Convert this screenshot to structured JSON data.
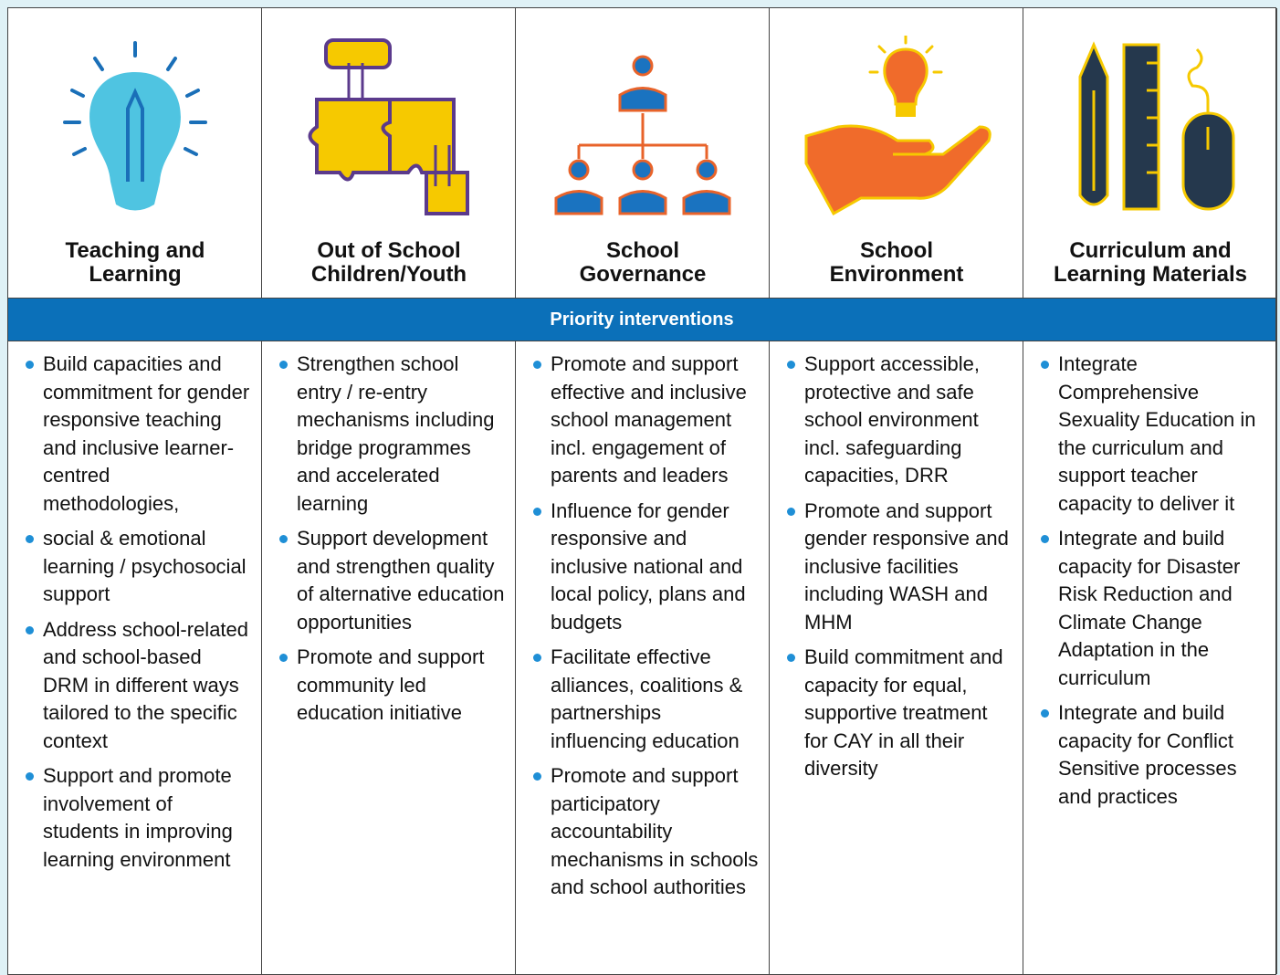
{
  "banner": "Priority interventions",
  "columns": [
    {
      "title": [
        "Teaching and",
        "Learning"
      ],
      "items": [
        "Build capacities and commitment for gender responsive teaching and inclusive learner-centred methodologies,",
        "social & emotional learning / psychosocial support",
        "Address school-related and school-based DRM in different ways tailored to the specific context",
        "Support and promote involvement of students in improving learning environment"
      ]
    },
    {
      "title": [
        "Out of School",
        "Children/Youth"
      ],
      "items": [
        "Strengthen school entry / re-entry mechanisms including bridge programmes and accelerated learning",
        "Support development and strengthen quality of alternative education opportunities",
        "Promote and support community led education initiative"
      ]
    },
    {
      "title": [
        "School",
        "Governance"
      ],
      "items": [
        "Promote and support effective and inclusive school management incl. engagement of parents and leaders",
        "Influence for gender responsive and inclusive national and local policy, plans and budgets",
        "Facilitate effective alliances, coalitions & partnerships influencing education",
        "Promote and support participatory accountability mechanisms in schools and school authorities"
      ]
    },
    {
      "title": [
        "School",
        "Environment"
      ],
      "items": [
        "Support accessible, protective and safe school environment incl. safeguarding capacities, DRR",
        "Promote and support gender responsive and inclusive facilities including WASH and MHM",
        "Build commitment and capacity for equal, supportive treatment for CAY in all their diversity"
      ]
    },
    {
      "title": [
        "Curriculum and",
        "Learning Materials"
      ],
      "items": [
        "Integrate Comprehensive Sexuality Education in the curriculum and support teacher capacity to deliver it",
        "Integrate and build capacity for Disaster Risk Reduction and Climate Change Adaptation in the curriculum",
        "Integrate and build capacity for Conflict Sensitive processes and practices"
      ]
    }
  ]
}
